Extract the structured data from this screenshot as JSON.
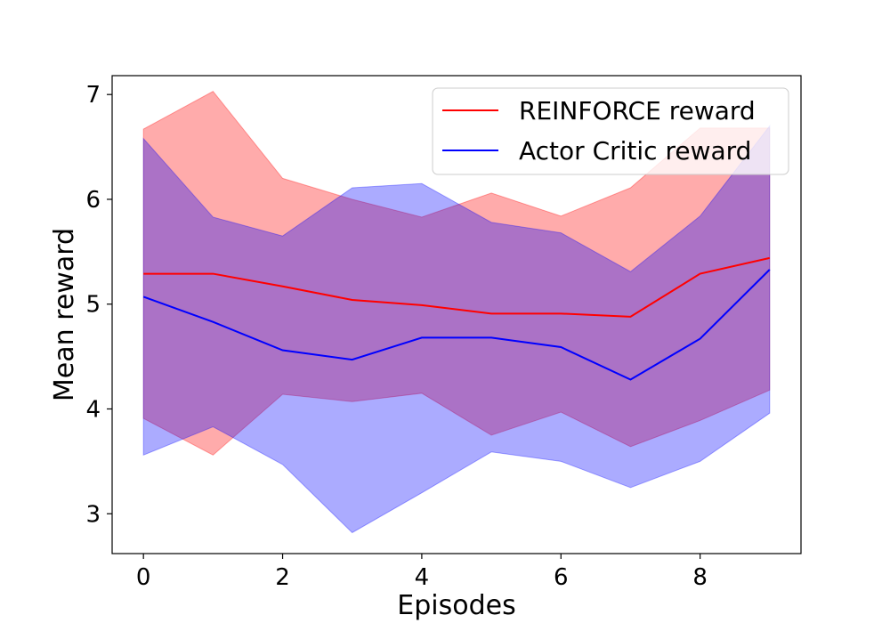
{
  "chart_data": {
    "type": "line",
    "title": "",
    "xlabel": "Episodes",
    "ylabel": "Mean reward",
    "xlim": [
      -0.45,
      9.45
    ],
    "ylim": [
      2.62,
      7.18
    ],
    "x_ticks": [
      0,
      2,
      4,
      6,
      8
    ],
    "y_ticks": [
      3,
      4,
      5,
      6,
      7
    ],
    "x": [
      0,
      1,
      2,
      3,
      4,
      5,
      6,
      7,
      8,
      9
    ],
    "grid": false,
    "legend_position": "upper right",
    "series": [
      {
        "name": "REINFORCE reward",
        "color": "#ff0000",
        "fill_color": "#ff0000",
        "values": [
          5.29,
          5.29,
          5.17,
          5.04,
          4.99,
          4.91,
          4.91,
          4.88,
          5.29,
          5.44
        ],
        "upper": [
          6.67,
          7.03,
          6.2,
          6.0,
          5.83,
          6.06,
          5.84,
          6.11,
          6.68,
          6.68
        ],
        "lower": [
          3.91,
          3.56,
          4.14,
          4.07,
          4.15,
          3.75,
          3.97,
          3.64,
          3.89,
          4.18
        ]
      },
      {
        "name": "Actor Critic reward",
        "color": "#0000ff",
        "fill_color": "#0000ff",
        "values": [
          5.07,
          4.83,
          4.56,
          4.47,
          4.68,
          4.68,
          4.59,
          4.28,
          4.67,
          5.33
        ],
        "upper": [
          6.58,
          5.83,
          5.65,
          6.11,
          6.15,
          5.78,
          5.68,
          5.31,
          5.84,
          6.7
        ],
        "lower": [
          3.56,
          3.83,
          3.47,
          2.82,
          3.2,
          3.59,
          3.5,
          3.25,
          3.5,
          3.96
        ]
      }
    ]
  }
}
